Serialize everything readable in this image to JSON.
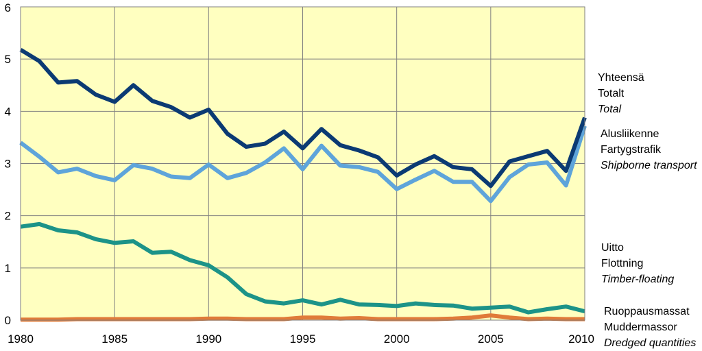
{
  "chart_data": {
    "type": "line",
    "x": [
      1980,
      1981,
      1982,
      1983,
      1984,
      1985,
      1986,
      1987,
      1988,
      1989,
      1990,
      1991,
      1992,
      1993,
      1994,
      1995,
      1996,
      1997,
      1998,
      1999,
      2000,
      2001,
      2002,
      2003,
      2004,
      2005,
      2006,
      2007,
      2008,
      2009,
      2010
    ],
    "xticks": [
      1980,
      1985,
      1990,
      1995,
      2000,
      2005,
      2010
    ],
    "yticks": [
      0,
      1,
      2,
      3,
      4,
      5,
      6
    ],
    "xlim": [
      1980,
      2010
    ],
    "ylim": [
      0,
      6
    ],
    "grid": true,
    "legend_placement": "right",
    "background_color": "#FFFFC0",
    "series": [
      {
        "legend": [
          "Yhteensä",
          "Totalt",
          "Total"
        ],
        "color": "#0B3A73",
        "values": [
          5.18,
          4.96,
          4.55,
          4.58,
          4.32,
          4.18,
          4.5,
          4.2,
          4.08,
          3.88,
          4.03,
          3.57,
          3.32,
          3.38,
          3.61,
          3.29,
          3.66,
          3.35,
          3.25,
          3.12,
          2.77,
          2.98,
          3.14,
          2.93,
          2.89,
          2.57,
          3.04,
          3.14,
          3.24,
          2.86,
          3.88
        ]
      },
      {
        "legend": [
          "Alusliikenne",
          "Fartygstrafik",
          "Shipborne transport"
        ],
        "color": "#5EA4DA",
        "values": [
          3.4,
          3.13,
          2.83,
          2.9,
          2.76,
          2.68,
          2.97,
          2.9,
          2.75,
          2.72,
          2.98,
          2.72,
          2.82,
          3.02,
          3.29,
          2.89,
          3.34,
          2.96,
          2.93,
          2.84,
          2.51,
          2.69,
          2.86,
          2.65,
          2.65,
          2.28,
          2.74,
          2.98,
          3.02,
          2.58,
          3.72
        ]
      },
      {
        "legend": [
          "Uitto",
          "Flottning",
          "Timber-floating"
        ],
        "color": "#1C9388",
        "values": [
          1.79,
          1.84,
          1.72,
          1.68,
          1.55,
          1.48,
          1.51,
          1.29,
          1.31,
          1.15,
          1.05,
          0.82,
          0.5,
          0.36,
          0.32,
          0.38,
          0.3,
          0.39,
          0.3,
          0.29,
          0.27,
          0.32,
          0.29,
          0.28,
          0.22,
          0.24,
          0.26,
          0.15,
          0.21,
          0.26,
          0.17
        ]
      },
      {
        "legend": [
          "Ruoppausmassat",
          "Muddermassor",
          "Dredged quantities"
        ],
        "color": "#E07B39",
        "values": [
          0.01,
          0.01,
          0.01,
          0.02,
          0.02,
          0.02,
          0.02,
          0.02,
          0.02,
          0.02,
          0.03,
          0.03,
          0.02,
          0.02,
          0.02,
          0.05,
          0.05,
          0.03,
          0.04,
          0.02,
          0.02,
          0.02,
          0.02,
          0.03,
          0.05,
          0.09,
          0.05,
          0.02,
          0.03,
          0.02,
          0.02
        ]
      }
    ]
  }
}
